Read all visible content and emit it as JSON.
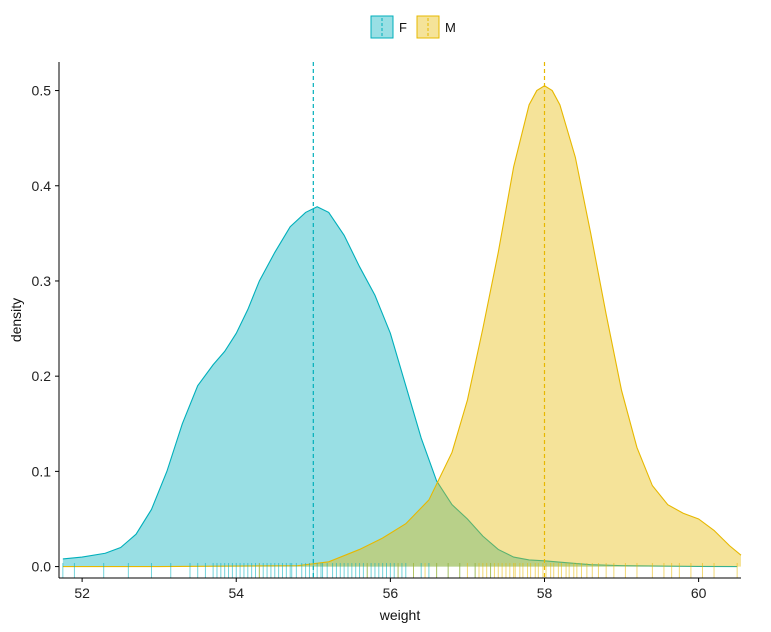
{
  "chart_data": {
    "type": "area",
    "subtype": "density",
    "xlabel": "weight",
    "ylabel": "density",
    "xlim": [
      51.7,
      60.55
    ],
    "ylim": [
      -0.012,
      0.53
    ],
    "x_ticks": [
      52,
      54,
      56,
      58,
      60
    ],
    "y_ticks": [
      0.0,
      0.1,
      0.2,
      0.3,
      0.4,
      0.5
    ],
    "y_tick_labels": [
      "0.0",
      "0.1",
      "0.2",
      "0.3",
      "0.4",
      "0.5"
    ],
    "grid": false,
    "legend_position": "top",
    "legend": [
      {
        "label": "F",
        "color": "#00AFBB"
      },
      {
        "label": "M",
        "color": "#E7B800"
      }
    ],
    "series": [
      {
        "name": "F",
        "color": "#00AFBB",
        "mean": 55.0,
        "x": [
          51.75,
          52.0,
          52.3,
          52.5,
          52.7,
          52.9,
          53.1,
          53.3,
          53.5,
          53.7,
          53.85,
          54.0,
          54.15,
          54.3,
          54.5,
          54.7,
          54.9,
          55.05,
          55.2,
          55.4,
          55.6,
          55.8,
          56.0,
          56.2,
          56.4,
          56.6,
          56.8,
          57.0,
          57.2,
          57.4,
          57.6,
          57.8,
          58.0,
          58.3,
          58.6,
          59.0,
          59.5,
          60.0,
          60.5
        ],
        "y": [
          0.008,
          0.01,
          0.014,
          0.02,
          0.034,
          0.06,
          0.1,
          0.15,
          0.19,
          0.212,
          0.226,
          0.245,
          0.27,
          0.3,
          0.33,
          0.357,
          0.372,
          0.378,
          0.372,
          0.348,
          0.315,
          0.285,
          0.245,
          0.19,
          0.135,
          0.09,
          0.065,
          0.05,
          0.032,
          0.018,
          0.01,
          0.007,
          0.006,
          0.004,
          0.002,
          0.001,
          0.0005,
          0.0002,
          0.0
        ]
      },
      {
        "name": "M",
        "color": "#E7B800",
        "mean": 58.0,
        "x": [
          51.75,
          53.0,
          54.0,
          54.8,
          55.2,
          55.6,
          55.9,
          56.2,
          56.5,
          56.8,
          57.0,
          57.2,
          57.4,
          57.6,
          57.8,
          57.9,
          58.0,
          58.1,
          58.2,
          58.4,
          58.6,
          58.8,
          59.0,
          59.2,
          59.4,
          59.6,
          59.8,
          60.0,
          60.2,
          60.4,
          60.55
        ],
        "y": [
          0.0,
          0.0,
          0.0005,
          0.001,
          0.005,
          0.018,
          0.03,
          0.045,
          0.07,
          0.12,
          0.175,
          0.25,
          0.33,
          0.42,
          0.485,
          0.5,
          0.505,
          0.5,
          0.485,
          0.43,
          0.35,
          0.265,
          0.185,
          0.125,
          0.085,
          0.065,
          0.056,
          0.05,
          0.038,
          0.022,
          0.012
        ]
      }
    ],
    "rug": {
      "F": [
        51.75,
        51.9,
        52.28,
        52.6,
        52.9,
        53.15,
        53.4,
        53.5,
        53.6,
        53.7,
        53.75,
        53.8,
        53.85,
        53.9,
        53.95,
        54.0,
        54.05,
        54.1,
        54.15,
        54.2,
        54.25,
        54.3,
        54.35,
        54.4,
        54.45,
        54.5,
        54.55,
        54.6,
        54.65,
        54.7,
        54.72,
        54.78,
        54.85,
        54.9,
        54.95,
        55.0,
        55.05,
        55.1,
        55.12,
        55.18,
        55.25,
        55.3,
        55.35,
        55.4,
        55.45,
        55.5,
        55.55,
        55.6,
        55.65,
        55.7,
        55.75,
        55.8,
        55.85,
        55.9,
        55.95,
        56.0,
        56.05,
        56.1,
        56.15,
        56.2,
        56.3,
        56.4,
        56.5,
        56.6,
        56.75,
        56.9,
        57.1,
        57.3
      ],
      "M": [
        54.3,
        55.7,
        56.1,
        56.3,
        56.45,
        56.6,
        56.75,
        56.9,
        57.0,
        57.1,
        57.15,
        57.2,
        57.25,
        57.3,
        57.35,
        57.4,
        57.45,
        57.5,
        57.55,
        57.6,
        57.62,
        57.68,
        57.72,
        57.78,
        57.82,
        57.88,
        57.92,
        57.98,
        58.02,
        58.08,
        58.12,
        58.18,
        58.22,
        58.28,
        58.32,
        58.38,
        58.42,
        58.48,
        58.55,
        58.62,
        58.7,
        58.8,
        58.9,
        59.05,
        59.2,
        59.4,
        59.55,
        59.65,
        59.75,
        59.9,
        60.05,
        60.2,
        60.5
      ]
    }
  }
}
